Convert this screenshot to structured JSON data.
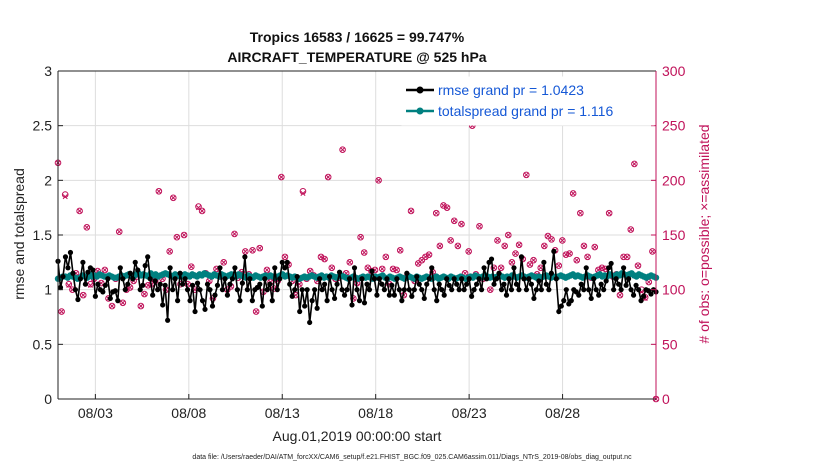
{
  "chart_data": {
    "type": "line",
    "title": "Tropics 16583 / 16625 = 99.747%",
    "subtitle": "AIRCRAFT_TEMPERATURE @ 525 hPa",
    "xlabel": "Aug.01,2019 00:00:00 start",
    "ylabel": "rmse and totalspread",
    "ylabel_right": "# of obs: o=possible; ×=assimilated",
    "footer": "data file: /Users/raeder/DAI/ATM_forcXX/CAM6_setup/f.e21.FHIST_BGC.f09_025.CAM6assim.011/Diags_NTrS_2019-08/obs_diag_output.nc",
    "xlim": [
      1,
      33
    ],
    "ylim": [
      0,
      3
    ],
    "ylim_right": [
      0,
      300
    ],
    "x_tick_labels": [
      "08/03",
      "08/08",
      "08/13",
      "08/18",
      "08/23",
      "08/28"
    ],
    "x_tick_positions": [
      3,
      8,
      13,
      18,
      23,
      28
    ],
    "y_ticks": [
      "0",
      "0.5",
      "1",
      "1.5",
      "2",
      "2.5",
      "3"
    ],
    "y_ticks_right": [
      "0",
      "50",
      "100",
      "150",
      "200",
      "250",
      "300"
    ],
    "grid": true,
    "legend_position": "top-right",
    "series": [
      {
        "name": "rmse grand pr = 1.0423",
        "color": "#000000",
        "axis": "left",
        "values": [
          1.26,
          1.02,
          1.12,
          1.3,
          1.2,
          1.34,
          1.15,
          1.0,
          0.91,
          1.1,
          1.25,
          1.05,
          1.16,
          1.2,
          1.18,
          0.94,
          1.05,
          1.0,
          0.98,
          1.04,
          1.1,
          0.92,
          0.98,
          0.99,
          0.9,
          1.2,
          1.1,
          1.0,
          1.05,
          1.15,
          1.1,
          1.25,
          1.18,
          1.0,
          1.04,
          1.22,
          1.3,
          1.1,
          0.95,
          1.08,
          1.0,
          1.05,
          0.86,
          1.04,
          0.72,
          1.2,
          1.0,
          1.1,
          0.9,
          1.15,
          1.05,
          1.1,
          1.0,
          0.9,
          1.04,
          0.8,
          1.06,
          1.0,
          0.9,
          0.82,
          1.05,
          1.0,
          0.85,
          0.95,
          1.04,
          1.2,
          1.0,
          1.1,
          0.95,
          1.05,
          1.1,
          1.2,
          1.0,
          0.9,
          1.06,
          1.3,
          1.0,
          1.1,
          0.9,
          1.0,
          1.02,
          1.05,
          0.85,
          1.1,
          1.0,
          1.05,
          0.9,
          1.2,
          1.0,
          1.1,
          1.25,
          1.2,
          1.25,
          1.05,
          0.94,
          1.0,
          1.12,
          0.8,
          1.0,
          0.85,
          1.0,
          0.7,
          0.9,
          1.0,
          0.83,
          1.1,
          1.0,
          1.05,
          0.9,
          1.12,
          1.0,
          0.92,
          1.05,
          1.16,
          1.0,
          0.95,
          1.0,
          1.1,
          0.86,
          1.2,
          1.0,
          0.9,
          1.1,
          0.88,
          1.05,
          1.0,
          1.17,
          1.1,
          0.95,
          1.1,
          1.05,
          1.0,
          1.1,
          0.95,
          1.04,
          0.95,
          1.1,
          1.0,
          0.9,
          1.0,
          1.15,
          1.0,
          0.94,
          1.0,
          1.12,
          1.05,
          1.0,
          0.92,
          1.05,
          1.1,
          1.2,
          1.0,
          0.9,
          1.05,
          1.0,
          0.95,
          1.1,
          1.04,
          1.0,
          1.1,
          1.05,
          1.0,
          1.1,
          1.0,
          1.05,
          1.1,
          0.94,
          1.0,
          1.05,
          1.1,
          1.0,
          1.2,
          1.1,
          1.25,
          1.28,
          1.05,
          1.1,
          1.15,
          1.0,
          1.05,
          0.95,
          1.1,
          1.0,
          1.2,
          1.05,
          1.0,
          1.3,
          1.1,
          1.0,
          1.1,
          1.05,
          0.92,
          1.0,
          1.08,
          1.0,
          1.25,
          1.05,
          1.0,
          1.15,
          1.35,
          1.1,
          0.8,
          0.85,
          0.9,
          1.0,
          0.87,
          0.9,
          1.0,
          0.98,
          0.95,
          1.05,
          1.0,
          1.2,
          1.0,
          0.92,
          1.1,
          1.0,
          0.95,
          1.05,
          1.0,
          1.08,
          1.2,
          1.24,
          1.0,
          1.1,
          1.05,
          1.0,
          1.2,
          1.04,
          1.1,
          1.0,
          0.95,
          1.04,
          1.0,
          0.9,
          0.94,
          1.0,
          0.99,
          0.96,
          1.0,
          0.98
        ]
      },
      {
        "name": "totalspread grand pr = 1.116",
        "color": "#008080",
        "axis": "left",
        "values": [
          1.1,
          1.11,
          1.12,
          1.12,
          1.11,
          1.13,
          1.12,
          1.11,
          1.1,
          1.11,
          1.13,
          1.12,
          1.11,
          1.14,
          1.12,
          1.13,
          1.12,
          1.14,
          1.13,
          1.12,
          1.12,
          1.13,
          1.12,
          1.11,
          1.11,
          1.12,
          1.13,
          1.12,
          1.13,
          1.14,
          1.13,
          1.12,
          1.14,
          1.15,
          1.13,
          1.14,
          1.13,
          1.12,
          1.15,
          1.13,
          1.14,
          1.12,
          1.13,
          1.14,
          1.15,
          1.14,
          1.13,
          1.12,
          1.14,
          1.13,
          1.12,
          1.13,
          1.14,
          1.13,
          1.12,
          1.14,
          1.13,
          1.12,
          1.14,
          1.13,
          1.15,
          1.14,
          1.13,
          1.12,
          1.14,
          1.13,
          1.12,
          1.14,
          1.13,
          1.12,
          1.13,
          1.14,
          1.13,
          1.12,
          1.14,
          1.13,
          1.12,
          1.11,
          1.13,
          1.12,
          1.11,
          1.13,
          1.12,
          1.11,
          1.12,
          1.13,
          1.12,
          1.13,
          1.12,
          1.11,
          1.12,
          1.13,
          1.14,
          1.12,
          1.13,
          1.12,
          1.11,
          1.12,
          1.11,
          1.1,
          1.11,
          1.12,
          1.11,
          1.12,
          1.13,
          1.12,
          1.11,
          1.12,
          1.13,
          1.11,
          1.12,
          1.11,
          1.13,
          1.12,
          1.11,
          1.12,
          1.13,
          1.12,
          1.11,
          1.1,
          1.11,
          1.12,
          1.11,
          1.1,
          1.11,
          1.12,
          1.11,
          1.12,
          1.11,
          1.1,
          1.12,
          1.11,
          1.12,
          1.13,
          1.11,
          1.1,
          1.12,
          1.11,
          1.1,
          1.11,
          1.12,
          1.11,
          1.1,
          1.11,
          1.12,
          1.11,
          1.1,
          1.12,
          1.11,
          1.1,
          1.11,
          1.12,
          1.11,
          1.1,
          1.11,
          1.12,
          1.1,
          1.11,
          1.12,
          1.11,
          1.1,
          1.12,
          1.11,
          1.1,
          1.11,
          1.12,
          1.11,
          1.1,
          1.11,
          1.12,
          1.11,
          1.13,
          1.12,
          1.11,
          1.12,
          1.13,
          1.12,
          1.11,
          1.12,
          1.11,
          1.12,
          1.13,
          1.12,
          1.11,
          1.12,
          1.11,
          1.13,
          1.12,
          1.11,
          1.12,
          1.13,
          1.12,
          1.11,
          1.12,
          1.13,
          1.12,
          1.11,
          1.12,
          1.11,
          1.12,
          1.13,
          1.12,
          1.11,
          1.12,
          1.11,
          1.12,
          1.13,
          1.12,
          1.11,
          1.12,
          1.13,
          1.14,
          1.12,
          1.13,
          1.12,
          1.11,
          1.12,
          1.13,
          1.12,
          1.11,
          1.12,
          1.13,
          1.14,
          1.12,
          1.13,
          1.12,
          1.14,
          1.13,
          1.12,
          1.14,
          1.13,
          1.15,
          1.14,
          1.13,
          1.14,
          1.15,
          1.13,
          1.12,
          1.14,
          1.13,
          1.12,
          1.11,
          1.12,
          1.13,
          1.12,
          1.11
        ]
      },
      {
        "name": "# of obs possible",
        "color": "#c0125a",
        "axis": "right",
        "marker": "o",
        "values": [
          216,
          80,
          187,
          105,
          100,
          115,
          172,
          95,
          157,
          105,
          110,
          117,
          106,
          118,
          92,
          85,
          110,
          153,
          88,
          100,
          102,
          108,
          112,
          85,
          96,
          104,
          105,
          108,
          190,
          110,
          100,
          135,
          184,
          148,
          105,
          150,
          105,
          121,
          100,
          176,
          172,
          115,
          108,
          92,
          119,
          112,
          125,
          100,
          103,
          151,
          111,
          116,
          135,
          114,
          136,
          80,
          138,
          98,
          118,
          107,
          101,
          108,
          203,
          130,
          123,
          108,
          95,
          105,
          190,
          110,
          117,
          113,
          108,
          130,
          128,
          203,
          120,
          110,
          111,
          228,
          115,
          125,
          92,
          106,
          148,
          134,
          120,
          117,
          118,
          200,
          119,
          130,
          105,
          119,
          118,
          136,
          95,
          113,
          172,
          108,
          124,
          127,
          130,
          132,
          116,
          170,
          140,
          177,
          175,
          145,
          163,
          140,
          160,
          115,
          135,
          250,
          114,
          158,
          110,
          111,
          100,
          120,
          145,
          120,
          140,
          150,
          125,
          133,
          141,
          128,
          205,
          123,
          127,
          114,
          120,
          140,
          149,
          146,
          136,
          122,
          145,
          132,
          133,
          188,
          127,
          170,
          140,
          130,
          111,
          139,
          118,
          120,
          119,
          170,
          112,
          114,
          95,
          130,
          130,
          155,
          215,
          122,
          100,
          93,
          107,
          135,
          0
        ]
      },
      {
        "name": "# of obs assimilated",
        "color": "#c0125a",
        "axis": "right",
        "marker": "x",
        "values": [
          216,
          80,
          185,
          104,
          100,
          115,
          172,
          95,
          157,
          104,
          110,
          117,
          106,
          118,
          92,
          85,
          110,
          153,
          88,
          100,
          102,
          108,
          112,
          85,
          96,
          104,
          105,
          108,
          190,
          110,
          100,
          135,
          184,
          148,
          105,
          150,
          105,
          121,
          100,
          175,
          172,
          115,
          108,
          92,
          119,
          112,
          125,
          100,
          103,
          151,
          111,
          116,
          135,
          114,
          136,
          80,
          138,
          98,
          118,
          107,
          101,
          108,
          203,
          130,
          123,
          108,
          95,
          105,
          188,
          110,
          117,
          113,
          108,
          130,
          128,
          203,
          120,
          110,
          111,
          228,
          115,
          125,
          92,
          106,
          148,
          134,
          120,
          117,
          118,
          200,
          119,
          130,
          105,
          119,
          118,
          136,
          95,
          113,
          172,
          108,
          124,
          127,
          130,
          132,
          116,
          170,
          140,
          177,
          175,
          145,
          163,
          140,
          160,
          115,
          135,
          250,
          114,
          158,
          110,
          111,
          100,
          120,
          145,
          120,
          140,
          150,
          125,
          133,
          141,
          128,
          205,
          123,
          127,
          114,
          120,
          140,
          149,
          146,
          136,
          122,
          145,
          132,
          133,
          188,
          127,
          170,
          140,
          130,
          111,
          139,
          118,
          120,
          119,
          170,
          112,
          114,
          95,
          130,
          130,
          155,
          215,
          122,
          98,
          92,
          107,
          135,
          0
        ]
      }
    ]
  }
}
